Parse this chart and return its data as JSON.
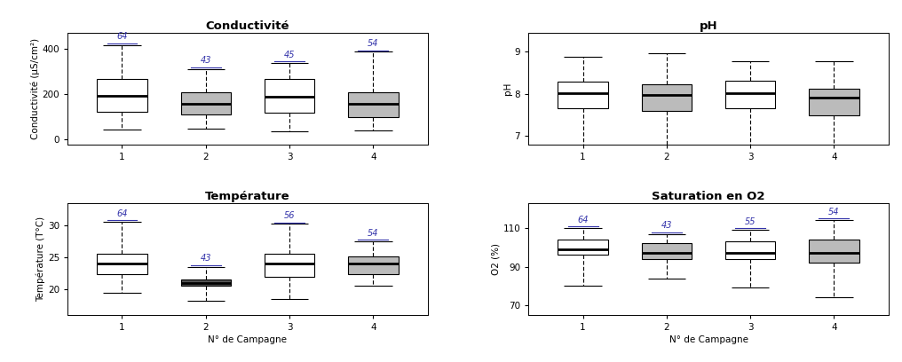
{
  "conductivite": {
    "title": "Conductivité",
    "ylabel": "Conductivité (µS/cm²)",
    "ylim": [
      -25,
      470
    ],
    "yticks": [
      0,
      200,
      400
    ],
    "n_labels": [
      "64",
      "43",
      "45",
      "54"
    ],
    "boxes": [
      {
        "q1": 120,
        "median": 190,
        "q3": 265,
        "whisker_low": 40,
        "whisker_high": 415,
        "color": "white"
      },
      {
        "q1": 110,
        "median": 155,
        "q3": 205,
        "whisker_low": 45,
        "whisker_high": 310,
        "color": "#bbbbbb"
      },
      {
        "q1": 115,
        "median": 185,
        "q3": 265,
        "whisker_low": 35,
        "whisker_high": 335,
        "color": "white"
      },
      {
        "q1": 95,
        "median": 155,
        "q3": 205,
        "whisker_low": 38,
        "whisker_high": 385,
        "color": "#bbbbbb"
      }
    ]
  },
  "ph": {
    "title": "pH",
    "ylabel": "pH",
    "ylim": [
      6.8,
      9.45
    ],
    "yticks": [
      7.0,
      8.0,
      9.0
    ],
    "n_labels": [],
    "boxes": [
      {
        "q1": 7.65,
        "median": 8.02,
        "q3": 8.3,
        "whisker_low": 6.6,
        "whisker_high": 8.87,
        "color": "white"
      },
      {
        "q1": 7.6,
        "median": 7.97,
        "q3": 8.22,
        "whisker_low": 6.62,
        "whisker_high": 8.97,
        "color": "#bbbbbb"
      },
      {
        "q1": 7.65,
        "median": 8.02,
        "q3": 8.32,
        "whisker_low": 6.62,
        "whisker_high": 8.77,
        "color": "white"
      },
      {
        "q1": 7.5,
        "median": 7.92,
        "q3": 8.12,
        "whisker_low": 6.52,
        "whisker_high": 8.77,
        "color": "#bbbbbb"
      }
    ]
  },
  "temperature": {
    "title": "Température",
    "ylabel": "Température (T°C)",
    "xlabel": "N° de Campagne",
    "ylim": [
      16.0,
      33.5
    ],
    "yticks": [
      20,
      25,
      30
    ],
    "n_labels": [
      "64",
      "43",
      "56",
      "54"
    ],
    "boxes": [
      {
        "q1": 22.3,
        "median": 24.0,
        "q3": 25.5,
        "whisker_low": 19.5,
        "whisker_high": 30.5,
        "color": "white"
      },
      {
        "q1": 20.5,
        "median": 21.0,
        "q3": 21.6,
        "whisker_low": 18.2,
        "whisker_high": 23.5,
        "color": "#555555"
      },
      {
        "q1": 22.0,
        "median": 24.0,
        "q3": 25.5,
        "whisker_low": 18.5,
        "whisker_high": 30.2,
        "color": "white"
      },
      {
        "q1": 22.3,
        "median": 24.0,
        "q3": 25.2,
        "whisker_low": 20.5,
        "whisker_high": 27.5,
        "color": "#bbbbbb"
      }
    ]
  },
  "o2": {
    "title": "Saturation en O2",
    "ylabel": "O2 (%)",
    "xlabel": "N° de Campagne",
    "ylim": [
      65,
      123
    ],
    "yticks": [
      70,
      90,
      110
    ],
    "n_labels": [
      "64",
      "43",
      "55",
      "54"
    ],
    "boxes": [
      {
        "q1": 96,
        "median": 99,
        "q3": 104,
        "whisker_low": 80,
        "whisker_high": 110,
        "color": "white"
      },
      {
        "q1": 94,
        "median": 97,
        "q3": 102,
        "whisker_low": 84,
        "whisker_high": 107,
        "color": "#bbbbbb"
      },
      {
        "q1": 94,
        "median": 97,
        "q3": 103,
        "whisker_low": 79,
        "whisker_high": 109,
        "color": "white"
      },
      {
        "q1": 92,
        "median": 97,
        "q3": 104,
        "whisker_low": 74,
        "whisker_high": 114,
        "color": "#bbbbbb"
      }
    ]
  },
  "box_width": 0.6,
  "positions": [
    1,
    2,
    3,
    4
  ],
  "n_label_color": "#3333aa",
  "n_label_fontsize": 7,
  "title_fontsize": 9.5,
  "axis_label_fontsize": 7.5,
  "tick_fontsize": 7.5,
  "linewidth": 0.8,
  "median_linewidth": 2.0
}
